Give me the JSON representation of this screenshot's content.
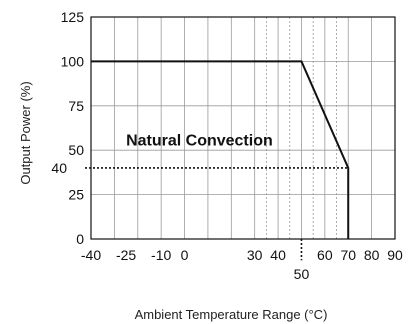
{
  "chart_data": {
    "type": "line",
    "title": "",
    "xlabel": "Ambient Temperature Range (°C)",
    "ylabel": "Output Power (%)",
    "xlim": [
      -40,
      90
    ],
    "ylim": [
      0,
      125
    ],
    "x_ticks": [
      -40,
      -25,
      -10,
      0,
      30,
      40,
      60,
      70,
      80,
      90
    ],
    "x_ticks_labels": [
      "-40",
      "-25",
      "-10",
      "0",
      "30",
      "40",
      "60",
      "70",
      "80",
      "90"
    ],
    "extra_x_tick": {
      "value": 50,
      "label": "50"
    },
    "y_ticks": [
      0,
      25,
      50,
      75,
      100,
      125
    ],
    "y_ticks_labels": [
      "0",
      "25",
      "50",
      "75",
      "100",
      "125"
    ],
    "extra_y_tick": {
      "value": 40,
      "label": "40"
    },
    "solid_vertical_grid": [
      -40,
      -30,
      -20,
      -10,
      0,
      10,
      20,
      30,
      40,
      50,
      60,
      70,
      80,
      90
    ],
    "dotted_vertical_grid": [
      35,
      45,
      55,
      65
    ],
    "horizontal_grid": [
      0,
      25,
      50,
      75,
      100,
      125
    ],
    "series": [
      {
        "points": [
          {
            "x": -40,
            "y": 100
          },
          {
            "x": 50,
            "y": 100
          },
          {
            "x": 70,
            "y": 40
          },
          {
            "x": 70,
            "y": 0
          }
        ]
      }
    ],
    "annotation": {
      "text": "Natural Convection",
      "x": -25,
      "y": 56
    },
    "reference_lines": [
      {
        "from": {
          "x": -40,
          "y": 40
        },
        "to": {
          "x": 70,
          "y": 40
        },
        "style": "dotted"
      },
      {
        "from": {
          "x": 50,
          "y": 0
        },
        "to": {
          "x": 50,
          "y": -12
        },
        "style": "dotted"
      }
    ]
  }
}
